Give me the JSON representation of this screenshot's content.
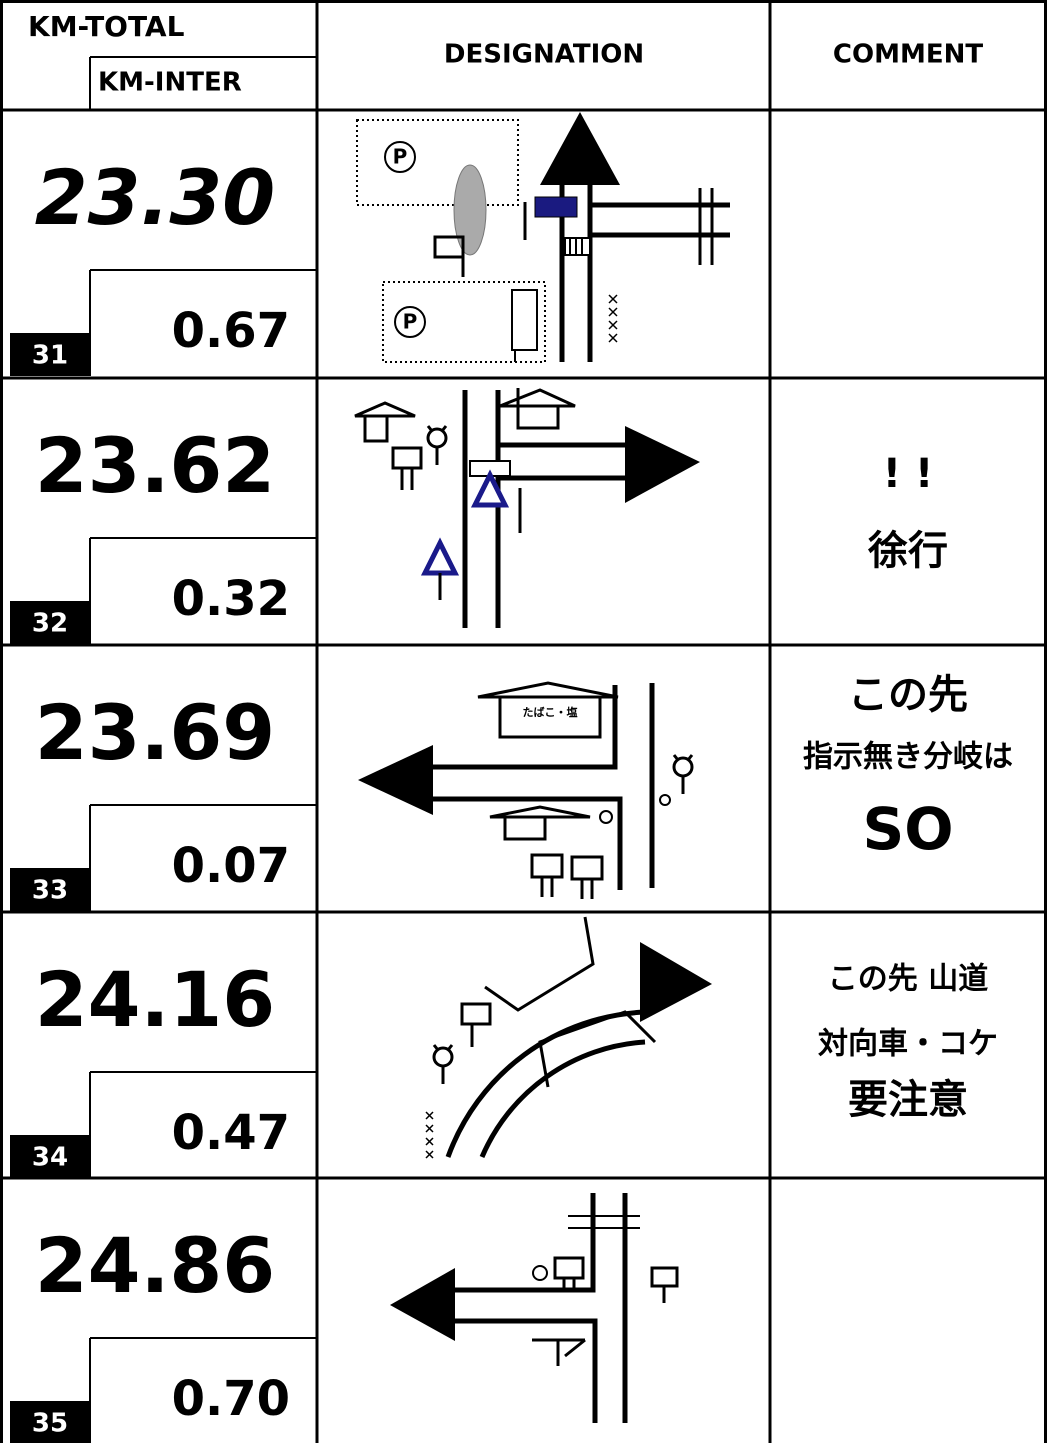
{
  "header": {
    "km_total": "KM-TOTAL",
    "km_inter": "KM-INTER",
    "designation": "DESIGNATION",
    "comment": "COMMENT"
  },
  "rows": [
    {
      "km_total": "23.30",
      "index": "31",
      "km_inter": "0.67",
      "diagram_labels": [
        "P",
        "P"
      ]
    },
    {
      "km_total": "23.62",
      "index": "32",
      "km_inter": "0.32",
      "comment": [
        "! !",
        "徐行"
      ]
    },
    {
      "km_total": "23.69",
      "index": "33",
      "km_inter": "0.07",
      "comment": [
        "この先",
        "指示無き分岐は",
        "SO"
      ],
      "diagram_labels": [
        "たばこ・塩"
      ]
    },
    {
      "km_total": "24.16",
      "index": "34",
      "km_inter": "0.47",
      "comment": [
        "この先 山道",
        "対向車・コケ",
        "要注意"
      ]
    },
    {
      "km_total": "24.86",
      "index": "35",
      "km_inter": "0.70"
    }
  ]
}
